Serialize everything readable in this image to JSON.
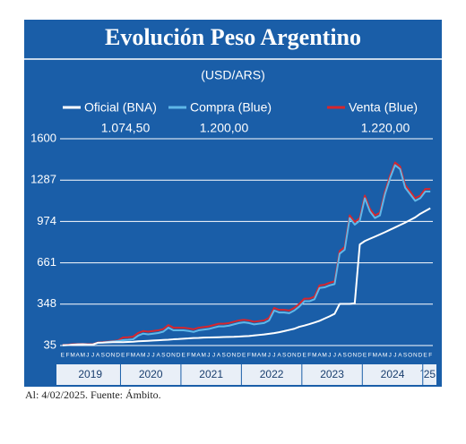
{
  "chart_data": {
    "type": "line",
    "title": "Evolución Peso Argentino",
    "subtitle": "(USD/ARS)",
    "footnote": "Al: 4/02/2025. Fuente: Ámbito.",
    "categories": [
      "E",
      "F",
      "M",
      "A",
      "M",
      "J",
      "J",
      "A",
      "S",
      "O",
      "N",
      "D",
      "E",
      "F",
      "M",
      "A",
      "M",
      "J",
      "J",
      "A",
      "S",
      "O",
      "N",
      "D",
      "E",
      "F",
      "M",
      "A",
      "M",
      "J",
      "J",
      "A",
      "S",
      "O",
      "N",
      "D",
      "E",
      "F",
      "M",
      "A",
      "M",
      "J",
      "J",
      "A",
      "S",
      "O",
      "N",
      "D",
      "E",
      "F",
      "M",
      "A",
      "M",
      "J",
      "J",
      "A",
      "S",
      "O",
      "N",
      "D",
      "E",
      "F",
      "M",
      "A",
      "M",
      "J",
      "J",
      "A",
      "S",
      "O",
      "N",
      "D",
      "E",
      "F"
    ],
    "years": [
      "2019",
      "2020",
      "2021",
      "2022",
      "2023",
      "2024",
      "´25"
    ],
    "ylim": [
      35,
      1600
    ],
    "yticks": [
      35,
      348,
      661,
      974,
      1287,
      1600
    ],
    "grid": true,
    "series": [
      {
        "name": "Venta (Blue)",
        "color": "#d7262d",
        "last_label": "1.220,00",
        "values": [
          40,
          41,
          45,
          48,
          47,
          45,
          45,
          58,
          61,
          65,
          69,
          73,
          96,
          98,
          102,
          130,
          145,
          140,
          145,
          150,
          160,
          190,
          170,
          170,
          170,
          165,
          158,
          170,
          175,
          180,
          190,
          200,
          200,
          205,
          215,
          225,
          230,
          225,
          215,
          220,
          225,
          245,
          320,
          305,
          305,
          300,
          320,
          350,
          390,
          390,
          405,
          490,
          495,
          510,
          520,
          750,
          780,
          1020,
          970,
          1000,
          1170,
          1070,
          1020,
          1040,
          1200,
          1320,
          1420,
          1390,
          1250,
          1200,
          1150,
          1170,
          1220,
          1220
        ]
      },
      {
        "name": "Compra (Blue)",
        "color": "#5fb7e8",
        "last_label": "1.200,00",
        "values": [
          37,
          38,
          42,
          45,
          44,
          42,
          42,
          55,
          58,
          62,
          66,
          70,
          76,
          78,
          82,
          110,
          125,
          120,
          125,
          130,
          140,
          170,
          150,
          150,
          150,
          145,
          138,
          150,
          155,
          160,
          170,
          180,
          180,
          185,
          195,
          205,
          210,
          205,
          195,
          200,
          205,
          225,
          300,
          285,
          285,
          280,
          300,
          330,
          370,
          370,
          385,
          470,
          475,
          490,
          500,
          730,
          760,
          1000,
          950,
          980,
          1150,
          1050,
          1000,
          1020,
          1180,
          1300,
          1400,
          1370,
          1230,
          1180,
          1130,
          1150,
          1200,
          1200
        ]
      },
      {
        "name": "Oficial (BNA)",
        "color": "#ffffff",
        "last_label": "1.074,50",
        "values": [
          37,
          38,
          41,
          43,
          44,
          43,
          43,
          56,
          57,
          59,
          60,
          60,
          60,
          62,
          64,
          67,
          69,
          71,
          73,
          75,
          77,
          79,
          82,
          84,
          87,
          89,
          92,
          93,
          95,
          96,
          97,
          98,
          99,
          100,
          101,
          103,
          105,
          107,
          111,
          115,
          119,
          124,
          129,
          136,
          144,
          153,
          162,
          177,
          186,
          197,
          209,
          222,
          239,
          256,
          275,
          350,
          350,
          350,
          355,
          800,
          826,
          843,
          859,
          876,
          893,
          911,
          929,
          947,
          965,
          985,
          1005,
          1032,
          1053,
          1074.5
        ]
      }
    ]
  }
}
